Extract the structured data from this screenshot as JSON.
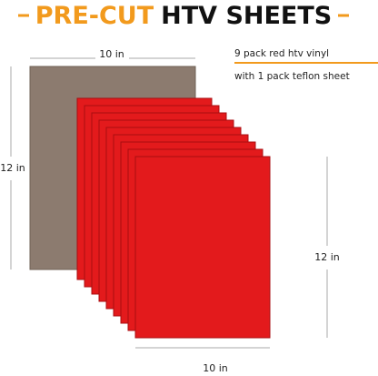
{
  "header": {
    "title_highlight": "PRE-CUT",
    "title_rest": "HTV SHEETS"
  },
  "dimensions": {
    "teflon_width": "10 in",
    "teflon_height": "12 in",
    "vinyl_height": "12 in",
    "vinyl_width": "10 in"
  },
  "description": [
    "9 pack red htv vinyl",
    "with 1 pack teflon sheet"
  ]
}
